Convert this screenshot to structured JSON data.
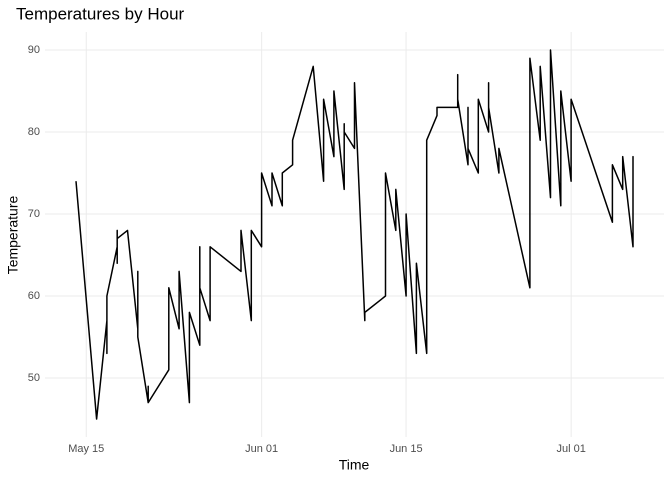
{
  "chart_data": {
    "type": "line",
    "title": "Temperatures by Hour",
    "x_label": "Time",
    "y_label": "Temperature",
    "x": [
      "05-14",
      "05-16",
      "05-17",
      "05-17",
      "05-17",
      "05-18",
      "05-18",
      "05-18",
      "05-18",
      "05-19",
      "05-20",
      "05-20",
      "05-20",
      "05-21",
      "05-21",
      "05-21",
      "05-23",
      "05-23",
      "05-24",
      "05-24",
      "05-25",
      "05-25",
      "05-26",
      "05-26",
      "05-26",
      "05-27",
      "05-27",
      "05-30",
      "05-30",
      "05-31",
      "05-31",
      "06-01",
      "06-01",
      "06-02",
      "06-02",
      "06-03",
      "06-03",
      "06-04",
      "06-04",
      "06-06",
      "06-07",
      "06-07",
      "06-08",
      "06-08",
      "06-09",
      "06-09",
      "06-09",
      "06-10",
      "06-10",
      "06-11",
      "06-11",
      "06-13",
      "06-13",
      "06-14",
      "06-14",
      "06-14",
      "06-15",
      "06-15",
      "06-16",
      "06-16",
      "06-17",
      "06-17",
      "06-17",
      "06-18",
      "06-18",
      "06-20",
      "06-20",
      "06-20",
      "06-21",
      "06-21",
      "06-21",
      "06-22",
      "06-22",
      "06-23",
      "06-23",
      "06-23",
      "06-24",
      "06-24",
      "06-27",
      "06-27",
      "06-28",
      "06-28",
      "06-29",
      "06-29",
      "06-29",
      "06-30",
      "06-30",
      "07-01",
      "07-01",
      "07-05",
      "07-05",
      "07-06",
      "07-06",
      "07-07",
      "07-07",
      "07-07"
    ],
    "series": [
      {
        "name": "Temperature",
        "color": "#000000",
        "values": [
          74,
          45,
          57,
          53,
          60,
          66,
          64,
          68,
          67,
          68,
          56,
          63,
          55,
          47,
          49,
          47,
          51,
          61,
          56,
          63,
          47,
          58,
          54,
          66,
          61,
          57,
          66,
          63,
          68,
          57,
          68,
          66,
          75,
          71,
          75,
          71,
          75,
          76,
          79,
          88,
          74,
          84,
          77,
          85,
          73,
          81,
          80,
          78,
          86,
          57,
          58,
          60,
          75,
          68,
          73,
          73,
          60,
          70,
          53,
          64,
          53,
          68,
          79,
          82,
          83,
          83,
          87,
          84,
          76,
          83,
          78,
          75,
          84,
          80,
          86,
          83,
          75,
          78,
          61,
          89,
          79,
          88,
          72,
          90,
          90,
          71,
          85,
          74,
          84,
          69,
          76,
          73,
          77,
          66,
          77,
          75
        ]
      }
    ],
    "xlim": [
      "05-11",
      "07-10"
    ],
    "xticks": [
      {
        "value": "05-15",
        "label": "May 15"
      },
      {
        "value": "06-01",
        "label": "Jun 01"
      },
      {
        "value": "06-15",
        "label": "Jun 15"
      },
      {
        "value": "07-01",
        "label": "Jul 01"
      }
    ],
    "ylim": [
      42.8,
      92.2
    ],
    "yticks": [
      50,
      60,
      70,
      80,
      90
    ],
    "grid": true
  }
}
